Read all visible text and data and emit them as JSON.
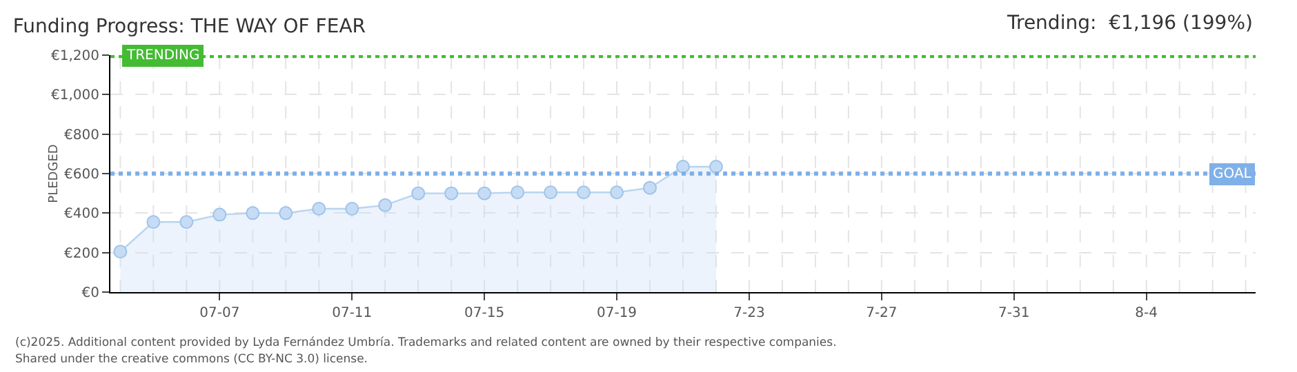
{
  "chart_data": {
    "type": "area",
    "title": "Funding Progress: THE WAY OF FEAR",
    "subtitle": "Trending:  €1,196 (199%)",
    "ylabel": "PLEDGED",
    "categories": [
      null,
      null,
      null,
      "07-07",
      null,
      null,
      null,
      "07-11",
      null,
      null,
      null,
      "07-15",
      null,
      null,
      null,
      "07-19",
      null,
      null,
      null,
      "7-23",
      null,
      null,
      null,
      "7-27",
      null,
      null,
      null,
      "7-31",
      null,
      null,
      null,
      "8-4",
      null,
      null,
      null
    ],
    "series": [
      {
        "color": "#b8d4f0",
        "values": [
          205,
          355,
          355,
          392,
          400,
          400,
          422,
          422,
          440,
          500,
          500,
          500,
          505,
          505,
          505,
          505,
          528,
          635,
          635,
          null,
          null,
          null,
          null,
          null,
          null,
          null,
          null,
          null,
          null,
          null,
          null,
          null,
          null,
          null,
          null
        ]
      }
    ],
    "ylim": [
      0,
      1200
    ],
    "yticks": [
      {
        "value": 0,
        "label": "€0"
      },
      {
        "value": 200,
        "label": "€200"
      },
      {
        "value": 400,
        "label": "€400"
      },
      {
        "value": 600,
        "label": "€600"
      },
      {
        "value": 800,
        "label": "€800"
      },
      {
        "value": 1000,
        "label": "€1,000"
      },
      {
        "value": 1200,
        "label": "€1,200"
      }
    ],
    "ref_lines": [
      {
        "axis": "y",
        "value": 1196,
        "label": "TRENDING",
        "color": "#44bb33",
        "line_style": "dotted"
      },
      {
        "axis": "y",
        "value": 600,
        "label": "GOAL",
        "color": "#7fb0e8",
        "line_style": "dotted"
      }
    ],
    "grid": true,
    "marker": "circle",
    "annotations": [
      "(c)2025. Additional content provided by Lyda Fernández Umbría. Trademarks and related content are owned by their respective companies.",
      "Shared under the creative commons (CC BY-NC 3.0) license."
    ]
  }
}
